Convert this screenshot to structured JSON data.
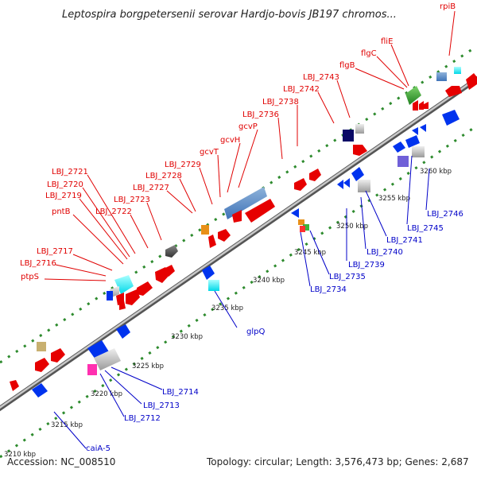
{
  "title": "Leptospira borgpetersenii serovar Hardjo-bovis JB197 chromos...",
  "footer": {
    "accession": "Accession: NC_008510",
    "summary": "Topology: circular; Length: 3,576,473 bp; Genes: 2,687"
  },
  "ticks": [
    "3210 kbp",
    "3215 kbp",
    "3220 kbp",
    "3225 kbp",
    "3230 kbp",
    "3235 kbp",
    "3240 kbp",
    "3245 kbp",
    "3250 kbp",
    "3255 kbp",
    "3260 kbp"
  ],
  "labels_top": [
    "rpiB",
    "fliE",
    "flgC",
    "flgB",
    "LBJ_2743",
    "LBJ_2742",
    "LBJ_2738",
    "LBJ_2736",
    "gcvP",
    "gcvH",
    "gcvT",
    "LBJ_2729",
    "LBJ_2728",
    "LBJ_2727",
    "LBJ_2723",
    "LBJ_2722",
    "LBJ_2721",
    "LBJ_2720",
    "LBJ_2719",
    "pntB",
    "LBJ_2717",
    "LBJ_2716",
    "ptpS"
  ],
  "labels_bottom": [
    "LBJ_2746",
    "LBJ_2745",
    "LBJ_2741",
    "LBJ_2740",
    "LBJ_2739",
    "LBJ_2735",
    "LBJ_2734",
    "glpQ",
    "LBJ_2714",
    "LBJ_2713",
    "LBJ_2712",
    "caiA-5"
  ],
  "colors": {
    "forward_strand": "#e00000",
    "reverse_strand": "#0000c8",
    "backbone": "#888888",
    "track_dots": "#2e8b2e",
    "cds_red": "#e60000",
    "cds_blue": "#0033ee"
  }
}
